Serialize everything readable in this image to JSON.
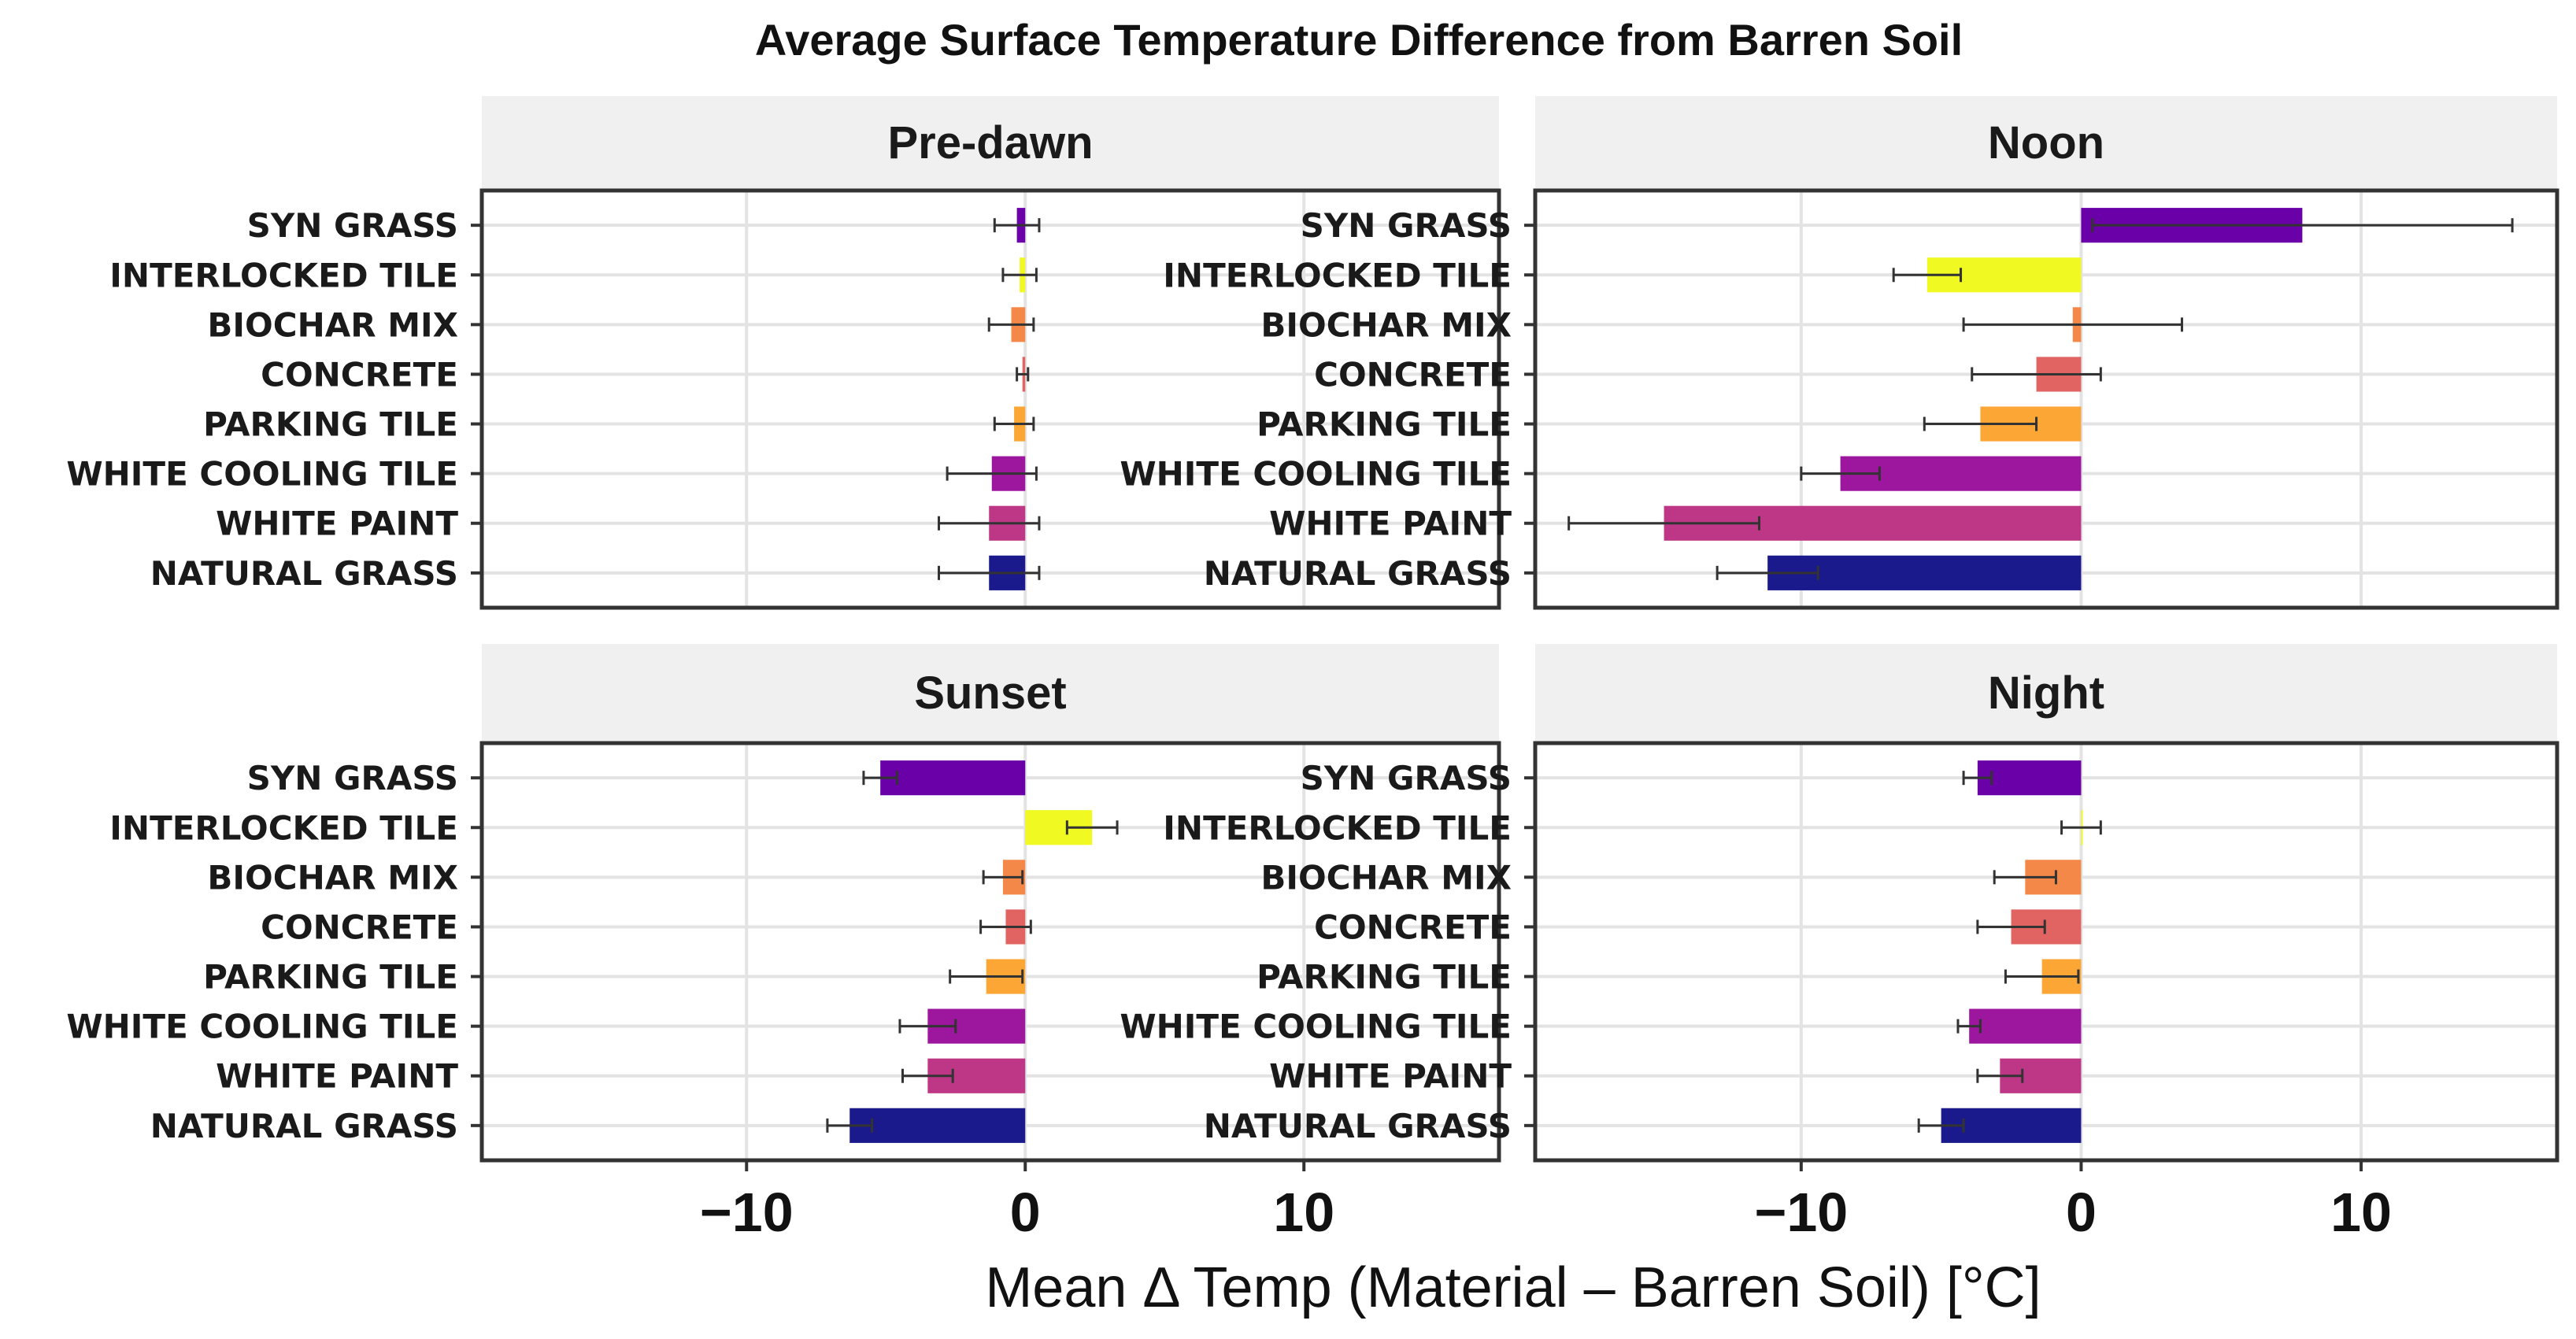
{
  "colors": {
    "SYN GRASS": "#6a00a8",
    "INTERLOCKED TILE": "#f0f921",
    "BIOCHAR MIX": "#f48849",
    "CONCRETE": "#e16462",
    "PARKING TILE": "#fca636",
    "WHITE COOLING TILE": "#9c179e",
    "WHITE PAINT": "#bd3786",
    "NATURAL GRASS": "#1a1a8c",
    "strip_bg": "#f0f0f0",
    "grid": "#e3e3e3",
    "panel_border": "#333333",
    "errorbar": "#333333"
  },
  "chart_data": {
    "type": "bar",
    "orientation": "horizontal",
    "title": "Average Surface Temperature Difference from Barren Soil",
    "xlabel": "Mean Δ Temp (Material – Barren Soil) [°C]",
    "ylabel": "",
    "xlim": [
      -19.5,
      17
    ],
    "xticks": [
      -10,
      0,
      10
    ],
    "xtick_labels": [
      "−10",
      "0",
      "10"
    ],
    "grid": true,
    "legend": "none",
    "categories": [
      "SYN GRASS",
      "INTERLOCKED TILE",
      "BIOCHAR MIX",
      "CONCRETE",
      "PARKING TILE",
      "WHITE COOLING TILE",
      "WHITE PAINT",
      "NATURAL GRASS"
    ],
    "panels": [
      {
        "name": "Pre-dawn",
        "values": [
          -0.3,
          -0.2,
          -0.5,
          -0.1,
          -0.4,
          -1.2,
          -1.3,
          -1.3
        ],
        "error": [
          0.8,
          0.6,
          0.8,
          0.2,
          0.7,
          1.6,
          1.8,
          1.8
        ]
      },
      {
        "name": "Noon",
        "values": [
          7.9,
          -5.5,
          -0.3,
          -1.6,
          -3.6,
          -8.6,
          -14.9,
          -11.2
        ],
        "error": [
          7.5,
          1.2,
          3.9,
          2.3,
          2.0,
          1.4,
          3.4,
          1.8
        ]
      },
      {
        "name": "Sunset",
        "values": [
          -5.2,
          2.4,
          -0.8,
          -0.7,
          -1.4,
          -3.5,
          -3.5,
          -6.3
        ],
        "error": [
          0.6,
          0.9,
          0.7,
          0.9,
          1.3,
          1.0,
          0.9,
          0.8
        ]
      },
      {
        "name": "Night",
        "values": [
          -3.7,
          0.0,
          -2.0,
          -2.5,
          -1.4,
          -4.0,
          -2.9,
          -5.0
        ],
        "error": [
          0.5,
          0.7,
          1.1,
          1.2,
          1.3,
          0.4,
          0.8,
          0.8
        ]
      }
    ]
  }
}
